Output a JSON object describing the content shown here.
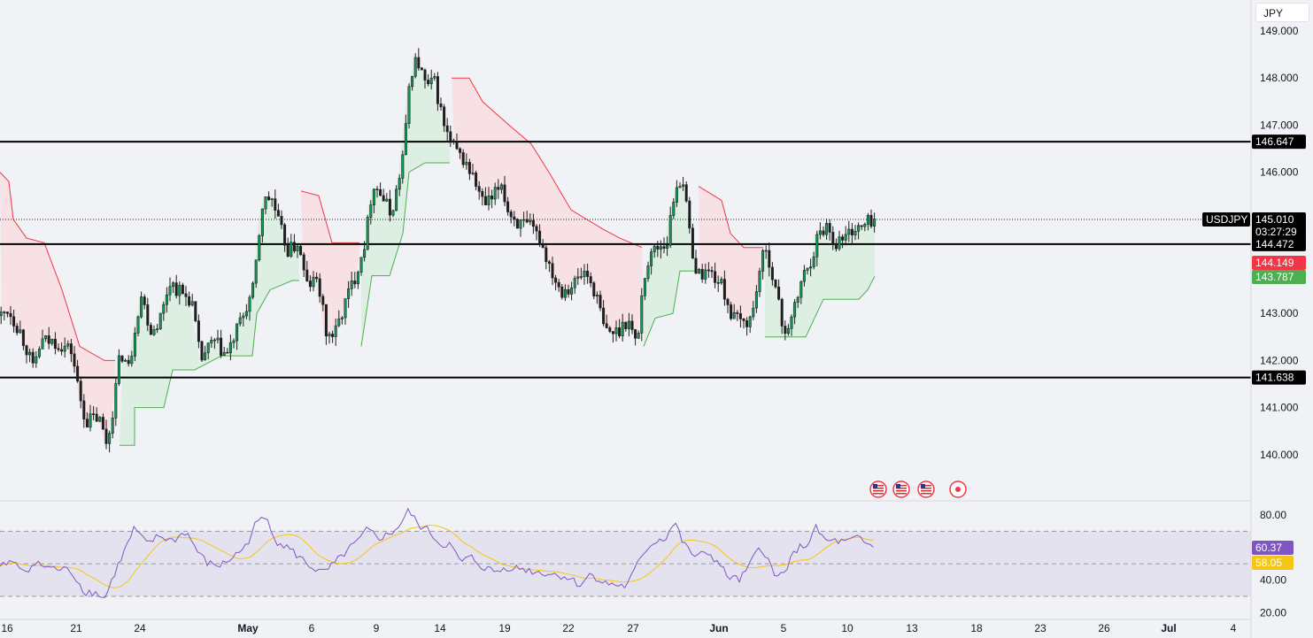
{
  "currency_label": "JPY",
  "symbol": "USDJPY",
  "colors": {
    "up_fill": "#0f9d58",
    "candle": "#1f1f1f",
    "resistance_line": "#000000",
    "supertrend_up": "#4caf50",
    "supertrend_down": "#f23645",
    "supertrend_up_fill": "#dbeee0",
    "supertrend_down_fill": "#f7dfe3",
    "rsi_line": "#7e57c2",
    "rsi_ma": "#f5c518",
    "rsi_band": "#e4e2ef"
  },
  "price_tags": {
    "last_price": "145.010",
    "countdown": "03:27:29",
    "tag1": "144.149",
    "tag2": "143.787",
    "rsi_value": "60.37",
    "rsi_ma_value": "58.05"
  },
  "chart_data": [
    {
      "type": "candlestick",
      "symbol": "USDJPY",
      "ylim": [
        139.0,
        149.6
      ],
      "y_ticks": [
        "149.000",
        "148.000",
        "147.000",
        "146.000",
        "143.000",
        "142.000",
        "141.000",
        "140.000"
      ],
      "x_ticks": [
        "16",
        "21",
        "24",
        "May",
        "6",
        "9",
        "14",
        "19",
        "22",
        "27",
        "Jun",
        "5",
        "10",
        "13",
        "18",
        "23",
        "26",
        "Jul",
        "4"
      ],
      "horizontal_levels": [
        {
          "label": "146.647",
          "value": 146.647
        },
        {
          "label": "144.472",
          "value": 144.472
        },
        {
          "label": "141.638",
          "value": 141.638
        }
      ],
      "last_price": 145.01,
      "indicator": "SuperTrend",
      "supertrend_values": {
        "down": 144.149,
        "up": 143.787
      },
      "event_markers": [
        "us-flag-icon",
        "us-flag-icon",
        "us-flag-icon",
        "record-icon"
      ]
    },
    {
      "type": "line",
      "name": "RSI",
      "ylim": [
        15,
        90
      ],
      "y_ticks": [
        "80.00",
        "40.00",
        "20.00"
      ],
      "band": [
        30,
        70
      ],
      "midline": 50,
      "series": [
        {
          "name": "RSI",
          "last": 60.37
        },
        {
          "name": "RSI MA",
          "last": 58.05
        }
      ]
    }
  ]
}
